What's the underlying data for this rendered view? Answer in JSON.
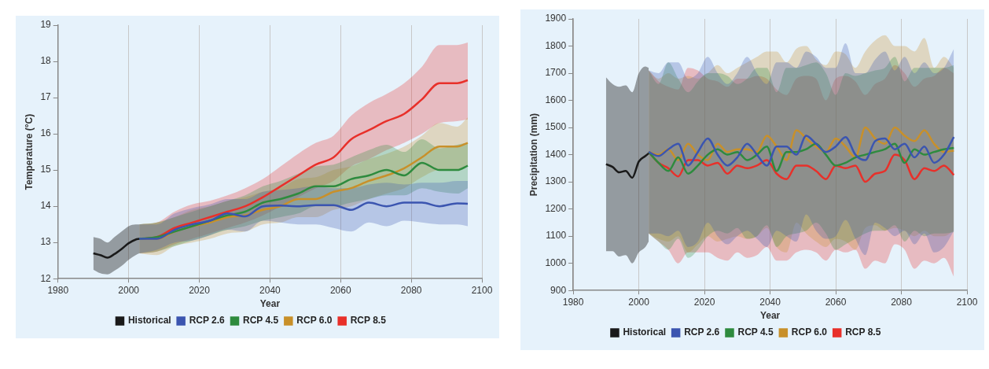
{
  "chart_data": [
    {
      "type": "line",
      "xlabel": "Year",
      "ylabel": "Temperature (°C)",
      "xlim": [
        1980,
        2100
      ],
      "xticks": [
        1980,
        2000,
        2020,
        2040,
        2060,
        2080,
        2100
      ],
      "ylim": [
        12,
        19
      ],
      "yticks": [
        12,
        13,
        14,
        15,
        16,
        17,
        18,
        19
      ],
      "grid": "x",
      "legend": "bottom",
      "marker": "none",
      "series": [
        {
          "name": "Historical",
          "color": "#1a1a1a",
          "x": [
            1990,
            1992,
            1994,
            1996,
            1998,
            2000,
            2002,
            2003
          ],
          "values": [
            12.7,
            12.65,
            12.58,
            12.68,
            12.82,
            12.98,
            13.08,
            13.1
          ],
          "lower": [
            12.25,
            12.15,
            12.12,
            12.22,
            12.35,
            12.52,
            12.65,
            12.7
          ],
          "upper": [
            13.15,
            13.1,
            13.0,
            13.15,
            13.3,
            13.45,
            13.5,
            13.5
          ]
        },
        {
          "name": "RCP 2.6",
          "color": "#3b55b0",
          "x": [
            2003,
            2008,
            2013,
            2018,
            2023,
            2028,
            2033,
            2038,
            2043,
            2048,
            2053,
            2058,
            2063,
            2068,
            2073,
            2078,
            2083,
            2088,
            2093,
            2096
          ],
          "values": [
            13.1,
            13.1,
            13.35,
            13.5,
            13.6,
            13.8,
            13.72,
            14.0,
            14.02,
            14.0,
            14.03,
            14.03,
            13.9,
            14.1,
            14.0,
            14.1,
            14.1,
            14.0,
            14.08,
            14.07
          ],
          "lower": [
            12.7,
            12.8,
            13.0,
            13.05,
            13.2,
            13.35,
            13.3,
            13.6,
            13.55,
            13.5,
            13.5,
            13.4,
            13.3,
            13.55,
            13.45,
            13.6,
            13.55,
            13.5,
            13.5,
            13.45
          ],
          "upper": [
            13.5,
            13.5,
            13.8,
            13.95,
            14.05,
            14.2,
            14.2,
            14.4,
            14.45,
            14.5,
            14.55,
            14.5,
            14.5,
            14.6,
            14.65,
            14.6,
            14.65,
            14.65,
            14.7,
            14.7
          ]
        },
        {
          "name": "RCP 4.5",
          "color": "#2e8b3e",
          "x": [
            2003,
            2008,
            2013,
            2018,
            2023,
            2028,
            2033,
            2038,
            2043,
            2048,
            2053,
            2058,
            2063,
            2068,
            2073,
            2078,
            2083,
            2088,
            2093,
            2096
          ],
          "values": [
            13.1,
            13.15,
            13.3,
            13.45,
            13.6,
            13.75,
            13.85,
            14.1,
            14.2,
            14.35,
            14.55,
            14.55,
            14.75,
            14.85,
            15.0,
            14.85,
            15.2,
            15.0,
            15.0,
            15.12
          ],
          "lower": [
            12.7,
            12.75,
            12.9,
            13.05,
            13.2,
            13.35,
            13.45,
            13.6,
            13.7,
            13.8,
            14.0,
            14.0,
            14.1,
            14.2,
            14.3,
            14.3,
            14.5,
            14.4,
            14.35,
            14.5
          ],
          "upper": [
            13.5,
            13.55,
            13.7,
            13.85,
            14.0,
            14.15,
            14.3,
            14.55,
            14.7,
            14.9,
            15.1,
            15.15,
            15.35,
            15.55,
            15.7,
            15.5,
            15.85,
            15.6,
            15.7,
            15.75
          ]
        },
        {
          "name": "RCP 6.0",
          "color": "#c8902a",
          "x": [
            2003,
            2008,
            2013,
            2018,
            2023,
            2028,
            2033,
            2038,
            2043,
            2048,
            2053,
            2058,
            2063,
            2068,
            2073,
            2078,
            2083,
            2088,
            2093,
            2096
          ],
          "values": [
            13.1,
            13.1,
            13.3,
            13.45,
            13.55,
            13.7,
            13.75,
            13.9,
            14.0,
            14.2,
            14.2,
            14.4,
            14.5,
            14.7,
            14.85,
            15.05,
            15.35,
            15.65,
            15.65,
            15.75
          ],
          "lower": [
            12.7,
            12.65,
            12.9,
            13.0,
            13.1,
            13.25,
            13.3,
            13.5,
            13.55,
            13.7,
            13.7,
            13.9,
            14.0,
            14.2,
            14.35,
            14.5,
            14.8,
            15.0,
            15.0,
            15.1
          ],
          "upper": [
            13.5,
            13.55,
            13.7,
            13.9,
            14.0,
            14.15,
            14.25,
            14.4,
            14.5,
            14.75,
            14.8,
            15.0,
            15.1,
            15.3,
            15.45,
            15.65,
            15.95,
            16.3,
            16.2,
            16.45
          ]
        },
        {
          "name": "RCP 8.5",
          "color": "#e8302a",
          "x": [
            2003,
            2008,
            2013,
            2018,
            2023,
            2028,
            2033,
            2038,
            2043,
            2048,
            2053,
            2058,
            2063,
            2068,
            2073,
            2078,
            2083,
            2088,
            2093,
            2096
          ],
          "values": [
            13.1,
            13.15,
            13.4,
            13.55,
            13.7,
            13.85,
            14.0,
            14.25,
            14.55,
            14.85,
            15.15,
            15.35,
            15.85,
            16.1,
            16.35,
            16.55,
            16.95,
            17.4,
            17.4,
            17.48
          ],
          "lower": [
            12.7,
            12.75,
            12.95,
            13.1,
            13.25,
            13.4,
            13.55,
            13.75,
            14.0,
            14.25,
            14.5,
            14.7,
            15.1,
            15.3,
            15.55,
            15.75,
            16.0,
            16.3,
            16.35,
            16.4
          ],
          "upper": [
            13.5,
            13.55,
            13.85,
            14.05,
            14.15,
            14.3,
            14.5,
            14.75,
            15.1,
            15.45,
            15.75,
            15.95,
            16.5,
            16.85,
            17.1,
            17.4,
            17.85,
            18.45,
            18.45,
            18.52
          ]
        }
      ]
    },
    {
      "type": "line",
      "xlabel": "Year",
      "ylabel": "Precipitation (mm)",
      "xlim": [
        1980,
        2100
      ],
      "xticks": [
        1980,
        2000,
        2020,
        2040,
        2060,
        2080,
        2100
      ],
      "ylim": [
        900,
        1900
      ],
      "yticks": [
        900,
        1000,
        1100,
        1200,
        1300,
        1400,
        1500,
        1600,
        1700,
        1800,
        1900
      ],
      "grid": "x",
      "legend": "bottom",
      "marker": "none",
      "series": [
        {
          "name": "Historical",
          "color": "#1a1a1a",
          "x": [
            1990,
            1992,
            1994,
            1996,
            1998,
            2000,
            2002,
            2003
          ],
          "values": [
            1365,
            1355,
            1335,
            1340,
            1315,
            1375,
            1395,
            1405
          ],
          "lower": [
            1045,
            1045,
            1025,
            1030,
            1000,
            1040,
            1060,
            1080
          ],
          "upper": [
            1685,
            1660,
            1650,
            1655,
            1630,
            1700,
            1725,
            1720
          ]
        },
        {
          "name": "RCP 2.6",
          "color": "#3b55b0",
          "x": [
            2003,
            2006,
            2009,
            2012,
            2015,
            2018,
            2021,
            2024,
            2027,
            2030,
            2033,
            2036,
            2039,
            2042,
            2045,
            2048,
            2051,
            2054,
            2057,
            2060,
            2063,
            2066,
            2069,
            2072,
            2075,
            2078,
            2081,
            2084,
            2087,
            2090,
            2093,
            2096
          ],
          "values": [
            1410,
            1395,
            1420,
            1440,
            1360,
            1410,
            1460,
            1400,
            1360,
            1390,
            1440,
            1400,
            1360,
            1430,
            1430,
            1400,
            1470,
            1440,
            1410,
            1430,
            1465,
            1400,
            1380,
            1450,
            1460,
            1420,
            1440,
            1390,
            1430,
            1370,
            1400,
            1465
          ],
          "lower": [
            1110,
            1110,
            1100,
            1120,
            1060,
            1080,
            1150,
            1100,
            1070,
            1100,
            1120,
            1090,
            1060,
            1120,
            1100,
            1080,
            1180,
            1120,
            1090,
            1100,
            1160,
            1090,
            1030,
            1150,
            1130,
            1100,
            1120,
            1070,
            1110,
            1040,
            1060,
            1120
          ],
          "upper": [
            1710,
            1700,
            1740,
            1740,
            1680,
            1700,
            1760,
            1700,
            1660,
            1700,
            1760,
            1700,
            1660,
            1740,
            1740,
            1720,
            1780,
            1760,
            1720,
            1720,
            1810,
            1700,
            1700,
            1750,
            1780,
            1710,
            1760,
            1700,
            1740,
            1700,
            1720,
            1790
          ]
        },
        {
          "name": "RCP 4.5",
          "color": "#2e8b3e",
          "x": [
            2003,
            2006,
            2009,
            2012,
            2015,
            2018,
            2021,
            2024,
            2027,
            2030,
            2033,
            2036,
            2039,
            2042,
            2045,
            2048,
            2051,
            2054,
            2057,
            2060,
            2063,
            2066,
            2069,
            2072,
            2075,
            2078,
            2081,
            2084,
            2087,
            2090,
            2093,
            2096
          ],
          "values": [
            1410,
            1370,
            1340,
            1390,
            1330,
            1360,
            1400,
            1420,
            1400,
            1410,
            1380,
            1400,
            1430,
            1340,
            1410,
            1410,
            1420,
            1440,
            1400,
            1360,
            1370,
            1390,
            1400,
            1410,
            1420,
            1440,
            1370,
            1420,
            1400,
            1410,
            1420,
            1425
          ],
          "lower": [
            1110,
            1080,
            1050,
            1090,
            1020,
            1050,
            1100,
            1120,
            1110,
            1130,
            1090,
            1100,
            1140,
            1060,
            1100,
            1110,
            1120,
            1150,
            1110,
            1050,
            1070,
            1090,
            1110,
            1120,
            1120,
            1140,
            1080,
            1120,
            1100,
            1110,
            1110,
            1115
          ],
          "upper": [
            1710,
            1660,
            1740,
            1680,
            1630,
            1670,
            1700,
            1700,
            1690,
            1660,
            1680,
            1720,
            1720,
            1630,
            1720,
            1720,
            1730,
            1740,
            1700,
            1620,
            1700,
            1690,
            1700,
            1710,
            1720,
            1760,
            1670,
            1720,
            1720,
            1720,
            1720,
            1730
          ]
        },
        {
          "name": "RCP 6.0",
          "color": "#c8902a",
          "x": [
            2003,
            2006,
            2009,
            2012,
            2015,
            2018,
            2021,
            2024,
            2027,
            2030,
            2033,
            2036,
            2039,
            2042,
            2045,
            2048,
            2051,
            2054,
            2057,
            2060,
            2063,
            2066,
            2069,
            2072,
            2075,
            2078,
            2081,
            2084,
            2087,
            2090,
            2093,
            2096
          ],
          "values": [
            1410,
            1400,
            1420,
            1380,
            1440,
            1400,
            1380,
            1440,
            1410,
            1420,
            1420,
            1410,
            1470,
            1430,
            1380,
            1490,
            1460,
            1430,
            1410,
            1460,
            1430,
            1390,
            1500,
            1460,
            1440,
            1500,
            1470,
            1450,
            1490,
            1440,
            1410,
            1415
          ],
          "lower": [
            1110,
            1090,
            1080,
            1100,
            1040,
            1070,
            1100,
            1080,
            1090,
            1100,
            1090,
            1100,
            1130,
            1060,
            1040,
            1150,
            1110,
            1080,
            1060,
            1090,
            1080,
            1050,
            1130,
            1140,
            1120,
            1130,
            1120,
            1100,
            1120,
            1100,
            1100,
            1120
          ],
          "upper": [
            1710,
            1680,
            1700,
            1680,
            1690,
            1680,
            1700,
            1730,
            1700,
            1720,
            1740,
            1760,
            1780,
            1780,
            1740,
            1790,
            1800,
            1750,
            1730,
            1780,
            1770,
            1720,
            1780,
            1820,
            1840,
            1800,
            1800,
            1780,
            1830,
            1720,
            1760,
            1720
          ]
        },
        {
          "name": "RCP 8.5",
          "color": "#e8302a",
          "x": [
            2003,
            2006,
            2009,
            2012,
            2015,
            2018,
            2021,
            2024,
            2027,
            2030,
            2033,
            2036,
            2039,
            2042,
            2045,
            2048,
            2051,
            2054,
            2057,
            2060,
            2063,
            2066,
            2069,
            2072,
            2075,
            2078,
            2081,
            2084,
            2087,
            2090,
            2093,
            2096
          ],
          "values": [
            1410,
            1370,
            1350,
            1320,
            1380,
            1380,
            1360,
            1370,
            1330,
            1360,
            1350,
            1360,
            1380,
            1330,
            1310,
            1360,
            1360,
            1340,
            1310,
            1360,
            1350,
            1360,
            1300,
            1330,
            1340,
            1400,
            1380,
            1310,
            1350,
            1340,
            1360,
            1325
          ],
          "lower": [
            1110,
            1080,
            1050,
            1000,
            1040,
            1040,
            1040,
            1020,
            1010,
            1040,
            1020,
            1030,
            1060,
            1010,
            1010,
            1040,
            1050,
            1040,
            1010,
            1050,
            1040,
            1050,
            980,
            1010,
            1000,
            1070,
            1050,
            980,
            1010,
            1000,
            1020,
            950
          ],
          "upper": [
            1710,
            1670,
            1650,
            1640,
            1720,
            1710,
            1680,
            1670,
            1650,
            1680,
            1680,
            1690,
            1680,
            1640,
            1620,
            1680,
            1690,
            1680,
            1600,
            1680,
            1690,
            1670,
            1620,
            1660,
            1680,
            1730,
            1700,
            1650,
            1680,
            1690,
            1720,
            1700
          ]
        }
      ]
    }
  ]
}
